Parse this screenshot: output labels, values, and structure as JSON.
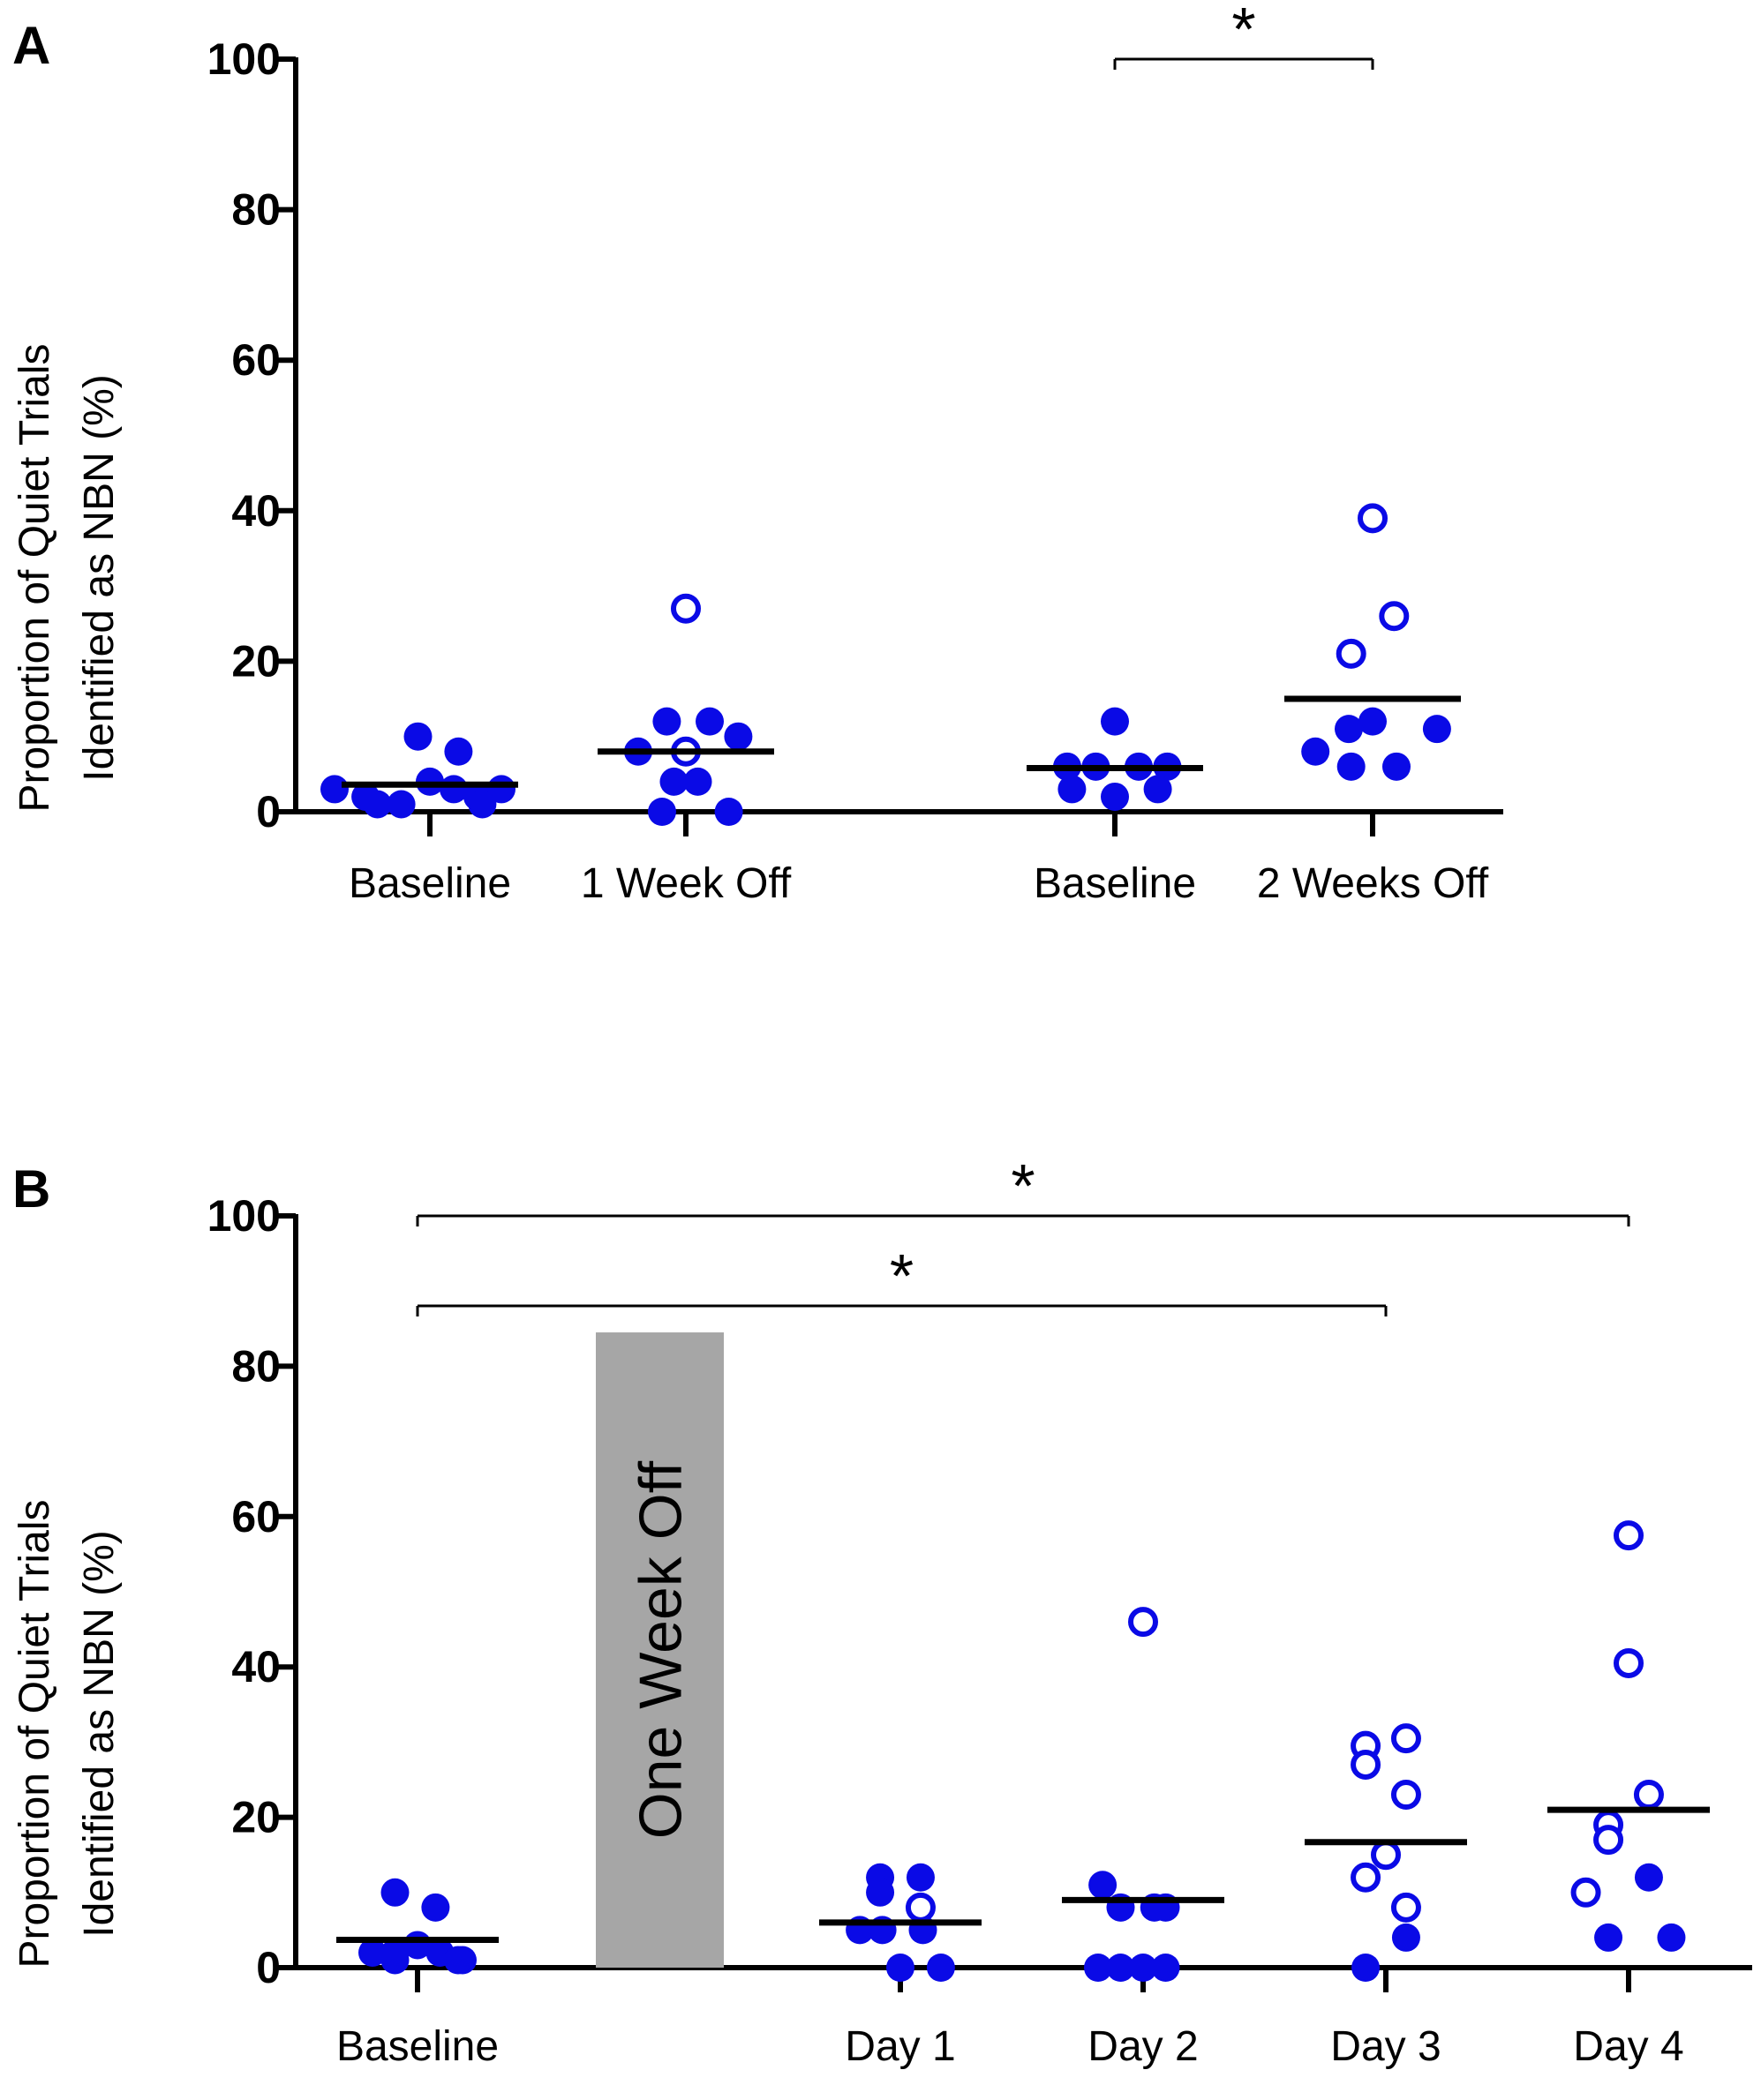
{
  "colors": {
    "point": "#0a0ae6",
    "axis": "#000000",
    "shade": "#a6a6a6"
  },
  "chart_data": [
    {
      "panel": "A",
      "type": "scatter",
      "ylabel_line1": "Proportion of Quiet Trials",
      "ylabel_line2": "Identified as NBN (%)",
      "ylim": [
        0,
        100
      ],
      "yticks": [
        "0",
        "20",
        "40",
        "60",
        "80",
        "100"
      ],
      "categories": [
        "Baseline",
        "1 Week Off",
        "Baseline",
        "2 Weeks Off"
      ],
      "groups": [
        {
          "label": "Baseline",
          "mean": 3.6,
          "filled": [
            [
              -0.4,
              3
            ],
            [
              -0.27,
              2
            ],
            [
              -0.12,
              1
            ],
            [
              0,
              4
            ],
            [
              0.1,
              3
            ],
            [
              0.2,
              2
            ],
            [
              -0.05,
              10
            ],
            [
              0.12,
              8
            ],
            [
              0.22,
              1
            ],
            [
              0.3,
              3
            ],
            [
              -0.22,
              1
            ]
          ],
          "open": []
        },
        {
          "label": "1 Week Off",
          "mean": 8,
          "filled": [
            [
              -0.2,
              8
            ],
            [
              -0.08,
              12
            ],
            [
              0.1,
              12
            ],
            [
              0.22,
              10
            ],
            [
              -0.05,
              4
            ],
            [
              0.05,
              4
            ],
            [
              -0.1,
              0
            ],
            [
              0.18,
              0
            ]
          ],
          "open": [
            [
              0,
              27
            ],
            [
              0,
              8
            ]
          ]
        },
        {
          "label": "Baseline",
          "mean": 5.8,
          "filled": [
            [
              -0.2,
              6
            ],
            [
              -0.08,
              6
            ],
            [
              0,
              12
            ],
            [
              0.1,
              6
            ],
            [
              0.22,
              6
            ],
            [
              -0.18,
              3
            ],
            [
              0,
              2
            ],
            [
              0.18,
              3
            ]
          ],
          "open": []
        },
        {
          "label": "2 Weeks Off",
          "mean": 15,
          "filled": [
            [
              -0.24,
              8
            ],
            [
              -0.1,
              11
            ],
            [
              0,
              12
            ],
            [
              0.27,
              11
            ],
            [
              -0.09,
              6
            ],
            [
              0.1,
              6
            ]
          ],
          "open": [
            [
              0,
              39
            ],
            [
              0.09,
              26
            ],
            [
              -0.09,
              21
            ]
          ]
        }
      ],
      "significance": [
        {
          "from": "Baseline",
          "to": "2 Weeks Off",
          "label": "*"
        }
      ]
    },
    {
      "panel": "B",
      "type": "scatter",
      "ylabel_line1": "Proportion of Quiet Trials",
      "ylabel_line2": "Identified as NBN (%)",
      "ylim": [
        0,
        100
      ],
      "yticks": [
        "0",
        "20",
        "40",
        "60",
        "80",
        "100"
      ],
      "categories": [
        "Baseline",
        "Day 1",
        "Day 2",
        "Day 3",
        "Day 4"
      ],
      "shaded_bar": {
        "label": "One Week Off",
        "top": 84.5
      },
      "groups": [
        {
          "label": "Baseline",
          "mean": 3.7,
          "filled": [
            [
              -0.2,
              2
            ],
            [
              -0.1,
              2
            ],
            [
              0,
              3
            ],
            [
              0.1,
              2
            ],
            [
              -0.1,
              1
            ],
            [
              0.2,
              1
            ],
            [
              -0.1,
              10
            ],
            [
              0.08,
              8
            ],
            [
              0.18,
              1
            ]
          ],
          "open": []
        },
        {
          "label": "Day 1",
          "mean": 6,
          "filled": [
            [
              -0.09,
              12
            ],
            [
              0.09,
              12
            ],
            [
              -0.09,
              10
            ],
            [
              -0.18,
              5
            ],
            [
              -0.08,
              5
            ],
            [
              0.1,
              5
            ],
            [
              0,
              0
            ],
            [
              0.18,
              0
            ]
          ],
          "open": [
            [
              0.09,
              8
            ]
          ]
        },
        {
          "label": "Day 2",
          "mean": 9,
          "filled": [
            [
              -0.18,
              11
            ],
            [
              -0.1,
              8
            ],
            [
              0.05,
              8
            ],
            [
              0.1,
              8
            ],
            [
              -0.2,
              0
            ],
            [
              -0.1,
              0
            ],
            [
              0,
              0
            ],
            [
              0.1,
              0
            ]
          ],
          "open": [
            [
              0,
              46
            ]
          ]
        },
        {
          "label": "Day 3",
          "mean": 16.7,
          "filled": [
            [
              0.09,
              4
            ],
            [
              -0.09,
              0
            ]
          ],
          "open": [
            [
              -0.09,
              29.5
            ],
            [
              0.09,
              30.5
            ],
            [
              -0.09,
              27
            ],
            [
              0.09,
              23
            ],
            [
              0,
              15
            ],
            [
              -0.09,
              12
            ],
            [
              0.09,
              8
            ]
          ]
        },
        {
          "label": "Day 4",
          "mean": 21,
          "filled": [
            [
              0.09,
              12
            ],
            [
              -0.09,
              4
            ],
            [
              0.19,
              4
            ]
          ],
          "open": [
            [
              0,
              57.5
            ],
            [
              0,
              40.5
            ],
            [
              0.09,
              23
            ],
            [
              -0.09,
              19
            ],
            [
              -0.09,
              17
            ],
            [
              -0.19,
              10
            ]
          ]
        }
      ],
      "significance": [
        {
          "from": "Baseline",
          "to": "Day 4",
          "label": "*"
        },
        {
          "from": "Baseline",
          "to": "Day 3",
          "label": "*"
        }
      ]
    }
  ]
}
